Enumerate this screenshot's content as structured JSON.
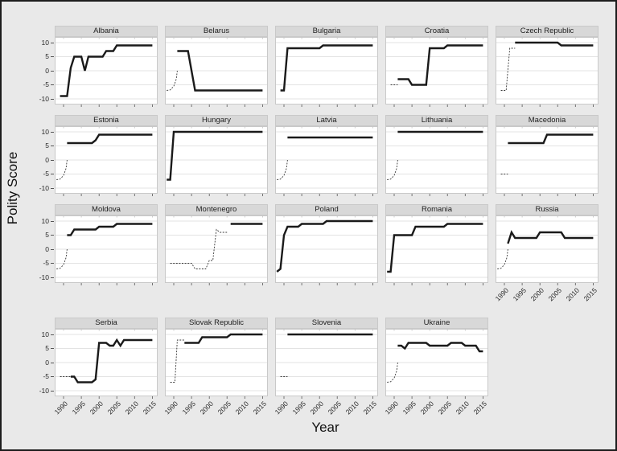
{
  "chart_data": {
    "type": "line",
    "title": "",
    "xlabel": "Year",
    "ylabel": "Polity Score",
    "x_ticks": [
      1990,
      1995,
      2000,
      2005,
      2010,
      2015
    ],
    "y_ticks": [
      10,
      5,
      0,
      -5,
      -10
    ],
    "x_range": [
      1987.5,
      2016.5
    ],
    "y_range": [
      -12,
      12
    ],
    "grid": "horizontal-only",
    "legend": "none",
    "line_style_note": "thick solid = observed polity score; thin dashed = interpolated/predecessor-state values",
    "colors": {
      "figure_background": "#e9e9e9",
      "panel_background": "#ffffff",
      "strip_background": "#d8d8d8",
      "gridline": "#e3e3e3",
      "line": "#1a1a1a",
      "dashed_line": "#3a3a3a",
      "border": "#1c1c1c"
    },
    "facets": [
      {
        "name": "Albania",
        "solid": [
          [
            1989,
            -9
          ],
          [
            1991,
            -9
          ],
          [
            1992,
            1
          ],
          [
            1993,
            5
          ],
          [
            1995,
            5
          ],
          [
            1996,
            0
          ],
          [
            1997,
            5
          ],
          [
            2001,
            5
          ],
          [
            2002,
            7
          ],
          [
            2004,
            7
          ],
          [
            2005,
            9
          ],
          [
            2015,
            9
          ]
        ]
      },
      {
        "name": "Belarus",
        "dashed": [
          [
            1988,
            -7
          ],
          [
            1989,
            -6.8
          ],
          [
            1990,
            -5.5
          ],
          [
            1990.7,
            -3
          ],
          [
            1991,
            0
          ]
        ],
        "solid": [
          [
            1991,
            7
          ],
          [
            1994,
            7
          ],
          [
            1996,
            -7
          ],
          [
            2015,
            -7
          ]
        ]
      },
      {
        "name": "Bulgaria",
        "solid": [
          [
            1989,
            -7
          ],
          [
            1990,
            -7
          ],
          [
            1991,
            8
          ],
          [
            2000,
            8
          ],
          [
            2001,
            9
          ],
          [
            2015,
            9
          ]
        ]
      },
      {
        "name": "Croatia",
        "dashed": [
          [
            1989,
            -5
          ],
          [
            1991,
            -5
          ]
        ],
        "solid": [
          [
            1991,
            -3
          ],
          [
            1994,
            -3
          ],
          [
            1995,
            -5
          ],
          [
            1999,
            -5
          ],
          [
            2000,
            8
          ],
          [
            2004,
            8
          ],
          [
            2005,
            9
          ],
          [
            2015,
            9
          ]
        ]
      },
      {
        "name": "Czech Republic",
        "dashed": [
          [
            1989,
            -7
          ],
          [
            1990.5,
            -7
          ],
          [
            1991.5,
            8
          ],
          [
            1993,
            8
          ]
        ],
        "solid": [
          [
            1993,
            10
          ],
          [
            2005,
            10
          ],
          [
            2006,
            9
          ],
          [
            2015,
            9
          ]
        ]
      },
      {
        "name": "Estonia",
        "dashed": [
          [
            1988,
            -7
          ],
          [
            1989,
            -6.8
          ],
          [
            1990,
            -5.5
          ],
          [
            1990.7,
            -3
          ],
          [
            1991,
            0
          ]
        ],
        "solid": [
          [
            1991,
            6
          ],
          [
            1998,
            6
          ],
          [
            1999,
            7
          ],
          [
            2000,
            9
          ],
          [
            2015,
            9
          ]
        ]
      },
      {
        "name": "Hungary",
        "solid": [
          [
            1988,
            -7
          ],
          [
            1989,
            -7
          ],
          [
            1990,
            10
          ],
          [
            2015,
            10
          ]
        ]
      },
      {
        "name": "Latvia",
        "dashed": [
          [
            1988,
            -7
          ],
          [
            1989,
            -6.8
          ],
          [
            1990,
            -5.5
          ],
          [
            1990.7,
            -3
          ],
          [
            1991,
            0
          ]
        ],
        "solid": [
          [
            1991,
            8
          ],
          [
            2015,
            8
          ]
        ]
      },
      {
        "name": "Lithuania",
        "dashed": [
          [
            1988,
            -7
          ],
          [
            1989,
            -6.8
          ],
          [
            1990,
            -5.5
          ],
          [
            1990.7,
            -3
          ],
          [
            1991,
            0
          ]
        ],
        "solid": [
          [
            1991,
            10
          ],
          [
            2015,
            10
          ]
        ]
      },
      {
        "name": "Macedonia",
        "dashed": [
          [
            1989,
            -5
          ],
          [
            1991,
            -5
          ]
        ],
        "solid": [
          [
            1991,
            6
          ],
          [
            2001,
            6
          ],
          [
            2002,
            9
          ],
          [
            2015,
            9
          ]
        ]
      },
      {
        "name": "Moldova",
        "dashed": [
          [
            1988,
            -7
          ],
          [
            1989,
            -6.8
          ],
          [
            1990,
            -5.5
          ],
          [
            1990.7,
            -3
          ],
          [
            1991,
            0
          ]
        ],
        "solid": [
          [
            1991,
            5
          ],
          [
            1992,
            5
          ],
          [
            1993,
            7
          ],
          [
            1999,
            7
          ],
          [
            2000,
            8
          ],
          [
            2004,
            8
          ],
          [
            2005,
            9
          ],
          [
            2015,
            9
          ]
        ]
      },
      {
        "name": "Montenegro",
        "dashed": [
          [
            1989,
            -5
          ],
          [
            1995,
            -5
          ],
          [
            1996,
            -7
          ],
          [
            1999,
            -7
          ],
          [
            2000,
            -4
          ],
          [
            2001,
            -4
          ],
          [
            2002,
            7
          ],
          [
            2003,
            6
          ],
          [
            2005,
            6
          ]
        ],
        "solid": [
          [
            2006,
            9
          ],
          [
            2015,
            9
          ]
        ]
      },
      {
        "name": "Poland",
        "solid": [
          [
            1988,
            -8
          ],
          [
            1989,
            -7
          ],
          [
            1990,
            5
          ],
          [
            1991,
            8
          ],
          [
            1994,
            8
          ],
          [
            1995,
            9
          ],
          [
            2001,
            9
          ],
          [
            2002,
            10
          ],
          [
            2015,
            10
          ]
        ]
      },
      {
        "name": "Romania",
        "solid": [
          [
            1988,
            -8
          ],
          [
            1989,
            -8
          ],
          [
            1990,
            5
          ],
          [
            1995,
            5
          ],
          [
            1996,
            8
          ],
          [
            2004,
            8
          ],
          [
            2005,
            9
          ],
          [
            2015,
            9
          ]
        ]
      },
      {
        "name": "Russia",
        "dashed": [
          [
            1988,
            -7
          ],
          [
            1989,
            -6.8
          ],
          [
            1990,
            -5.5
          ],
          [
            1990.7,
            -3
          ],
          [
            1991,
            0
          ]
        ],
        "solid": [
          [
            1991,
            2
          ],
          [
            1992,
            6
          ],
          [
            1993,
            4
          ],
          [
            1999,
            4
          ],
          [
            2000,
            6
          ],
          [
            2006,
            6
          ],
          [
            2007,
            4
          ],
          [
            2015,
            4
          ]
        ]
      },
      {
        "name": "Serbia",
        "dashed": [
          [
            1989,
            -5
          ],
          [
            1992,
            -5
          ]
        ],
        "solid": [
          [
            1992,
            -5
          ],
          [
            1993,
            -5
          ],
          [
            1994,
            -7
          ],
          [
            1998,
            -7
          ],
          [
            1999,
            -6
          ],
          [
            2000,
            7
          ],
          [
            2002,
            7
          ],
          [
            2003,
            6
          ],
          [
            2004,
            6
          ],
          [
            2005,
            8
          ],
          [
            2006,
            6
          ],
          [
            2007,
            8
          ],
          [
            2015,
            8
          ]
        ]
      },
      {
        "name": "Slovak Republic",
        "dashed": [
          [
            1989,
            -7
          ],
          [
            1990.3,
            -7
          ],
          [
            1991,
            8
          ],
          [
            1993,
            8
          ]
        ],
        "solid": [
          [
            1993,
            7
          ],
          [
            1997,
            7
          ],
          [
            1998,
            9
          ],
          [
            2005,
            9
          ],
          [
            2006,
            10
          ],
          [
            2015,
            10
          ]
        ]
      },
      {
        "name": "Slovenia",
        "dashed": [
          [
            1989,
            -5
          ],
          [
            1991,
            -5
          ]
        ],
        "solid": [
          [
            1991,
            10
          ],
          [
            2015,
            10
          ]
        ]
      },
      {
        "name": "Ukraine",
        "dashed": [
          [
            1988,
            -7
          ],
          [
            1989,
            -6.8
          ],
          [
            1990,
            -5.5
          ],
          [
            1990.7,
            -3
          ],
          [
            1991,
            0
          ]
        ],
        "solid": [
          [
            1991,
            6
          ],
          [
            1992,
            6
          ],
          [
            1993,
            5
          ],
          [
            1994,
            7
          ],
          [
            1999,
            7
          ],
          [
            2000,
            6
          ],
          [
            2005,
            6
          ],
          [
            2006,
            7
          ],
          [
            2009,
            7
          ],
          [
            2010,
            6
          ],
          [
            2013,
            6
          ],
          [
            2014,
            4
          ],
          [
            2015,
            4
          ]
        ]
      }
    ]
  }
}
